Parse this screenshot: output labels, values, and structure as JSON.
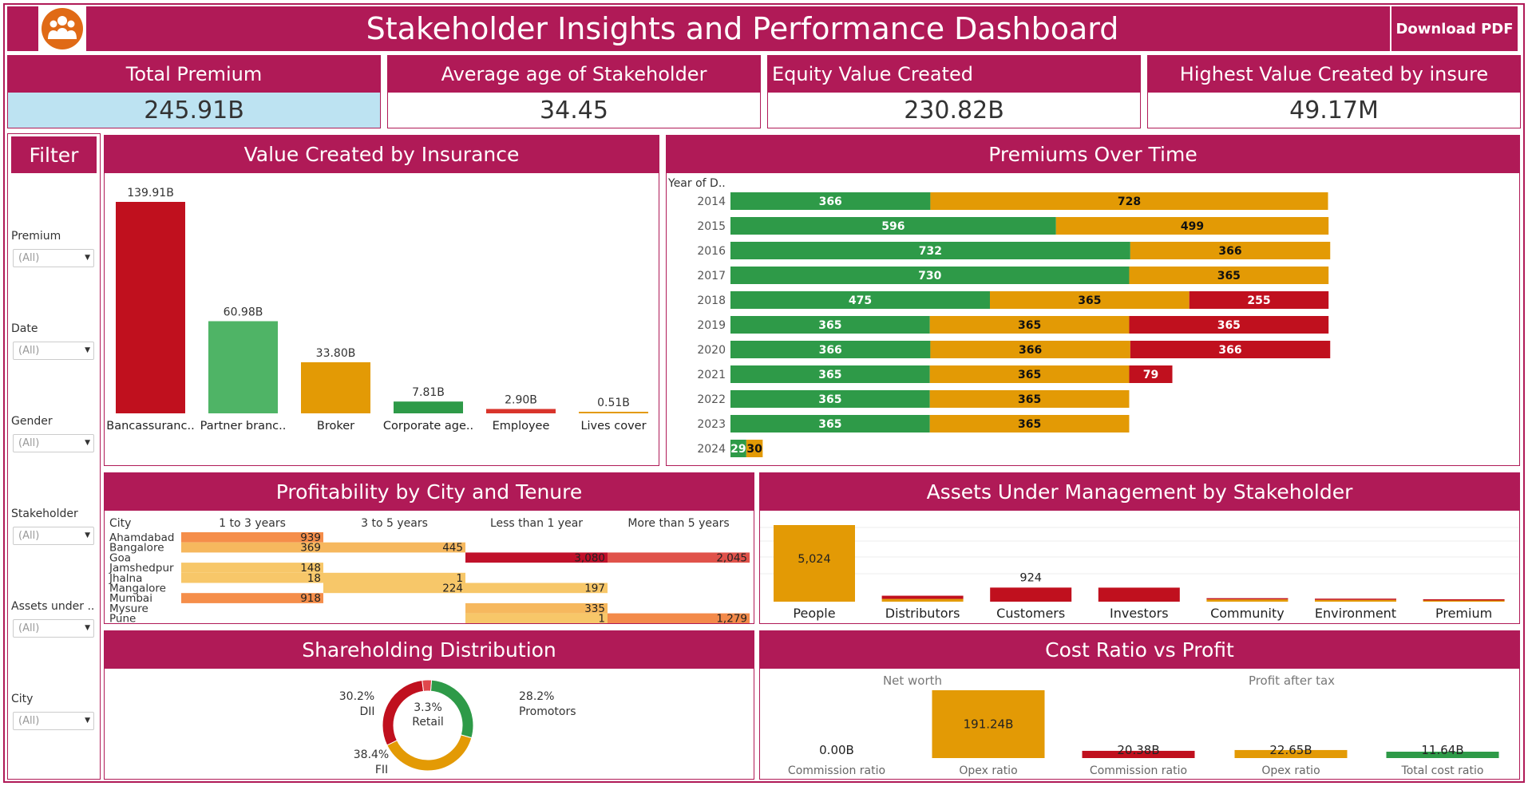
{
  "header": {
    "title": "Stakeholder Insights and Performance Dashboard",
    "download_label": "Download PDF"
  },
  "kpis": [
    {
      "label": "Total Premium",
      "value": "245.91B"
    },
    {
      "label": "Average age of Stakeholder",
      "value": "34.45"
    },
    {
      "label": "Equity Value Created",
      "value": "230.82B"
    },
    {
      "label": "Highest Value Created by insure",
      "value": "49.17M"
    }
  ],
  "filter": {
    "title": "Filter",
    "items": [
      {
        "label": "Premium",
        "value": "(All)"
      },
      {
        "label": "Date",
        "value": "(All)"
      },
      {
        "label": "Gender",
        "value": "(All)"
      },
      {
        "label": "Stakeholder",
        "value": "(All)"
      },
      {
        "label": "Assets under ..",
        "value": "(All)"
      },
      {
        "label": "City",
        "value": "(All)"
      }
    ]
  },
  "colors": {
    "maroon": "#b01a57",
    "red": "#c0101e",
    "green": "#2e9a48",
    "lightgreen": "#4fb466",
    "orange": "#e39a05",
    "kpi_highlight": "#bde3f2"
  },
  "panels": {
    "value_created": "Value Created by Insurance",
    "premiums": "Premiums Over Time",
    "profitability": "Profitability by City and Tenure",
    "aum": "Assets Under Management by Stakeholder",
    "shareholding": "Shareholding Distribution",
    "cost_ratio": "Cost Ratio vs Profit"
  },
  "chart_data": [
    {
      "id": "value_created",
      "type": "bar",
      "categories": [
        "Bancassuranc..",
        "Partner branc..",
        "Broker",
        "Corporate age..",
        "Employee",
        "Lives cover"
      ],
      "values": [
        139.91,
        60.98,
        33.8,
        7.81,
        2.9,
        0.51
      ],
      "labels": [
        "139.91B",
        "60.98B",
        "33.80B",
        "7.81B",
        "2.90B",
        "0.51B"
      ],
      "colors": [
        "#c0101e",
        "#4fb466",
        "#e39a05",
        "#2e9a48",
        "#d9342b",
        "#e39a05"
      ]
    },
    {
      "id": "premiums",
      "type": "bar",
      "orientation": "horizontal-stacked",
      "axis_label": "Year of D..",
      "categories": [
        "2014",
        "2015",
        "2016",
        "2017",
        "2018",
        "2019",
        "2020",
        "2021",
        "2022",
        "2023",
        "2024"
      ],
      "series": [
        {
          "color": "#2e9a48",
          "values": [
            366,
            596,
            732,
            730,
            475,
            365,
            366,
            365,
            365,
            365,
            29
          ]
        },
        {
          "color": "#e39a05",
          "values": [
            728,
            499,
            366,
            365,
            365,
            365,
            366,
            365,
            365,
            365,
            30
          ]
        },
        {
          "color": "#c0101e",
          "values": [
            0,
            0,
            0,
            0,
            255,
            365,
            366,
            79,
            0,
            0,
            0
          ]
        }
      ]
    },
    {
      "id": "profitability",
      "type": "table",
      "row_header": "City",
      "columns": [
        "1 to 3 years",
        "3 to 5 years",
        "Less than 1 year",
        "More than 5 years"
      ],
      "rows": [
        {
          "city": "Ahamdabad",
          "cells": [
            939,
            null,
            null,
            null
          ]
        },
        {
          "city": "Bangalore",
          "cells": [
            369,
            445,
            null,
            null
          ]
        },
        {
          "city": "Goa",
          "cells": [
            null,
            null,
            3080,
            2045
          ]
        },
        {
          "city": "Jamshedpur",
          "cells": [
            148,
            null,
            null,
            null
          ]
        },
        {
          "city": "Jhalna",
          "cells": [
            18,
            1,
            null,
            null
          ]
        },
        {
          "city": "Mangalore",
          "cells": [
            null,
            224,
            197,
            null
          ]
        },
        {
          "city": "Mumbai",
          "cells": [
            918,
            null,
            null,
            null
          ]
        },
        {
          "city": "Mysure",
          "cells": [
            null,
            null,
            335,
            null
          ]
        },
        {
          "city": "Pune",
          "cells": [
            null,
            null,
            1,
            1279
          ]
        }
      ],
      "cell_labels": {
        "Ahamdabad": [
          "939",
          "",
          "",
          ""
        ],
        "Bangalore": [
          "369",
          "445",
          "",
          ""
        ],
        "Goa": [
          "",
          "",
          "3,080",
          "2,045"
        ],
        "Jamshedpur": [
          "148",
          "",
          "",
          ""
        ],
        "Jhalna": [
          "18",
          "1",
          "",
          ""
        ],
        "Mangalore": [
          "",
          "224",
          "197",
          ""
        ],
        "Mumbai": [
          "918",
          "",
          "",
          ""
        ],
        "Mysure": [
          "",
          "",
          "335",
          ""
        ],
        "Pune": [
          "",
          "",
          "1",
          "1,279"
        ]
      }
    },
    {
      "id": "aum",
      "type": "bar",
      "orientation": "stacked",
      "categories": [
        "People",
        "Distributors",
        "Customers",
        "Investors",
        "Community",
        "Environment",
        "Premium"
      ],
      "series": [
        {
          "color": "#e39a05",
          "values": [
            5024,
            180,
            0,
            0,
            150,
            120,
            15
          ]
        },
        {
          "color": "#c0101e",
          "values": [
            0,
            210,
            924,
            920,
            20,
            15,
            10
          ]
        }
      ],
      "labels": [
        "5,024",
        "",
        "924",
        "",
        "",
        "",
        ""
      ],
      "max": 5600
    },
    {
      "id": "shareholding",
      "type": "pie",
      "slices": [
        {
          "name": "Promotors",
          "value": 28.2,
          "label": "28.2%",
          "color": "#2e9a48"
        },
        {
          "name": "FII",
          "value": 38.4,
          "label": "38.4%",
          "color": "#e39a05"
        },
        {
          "name": "DII",
          "value": 30.2,
          "label": "30.2%",
          "color": "#c0101e"
        },
        {
          "name": "Retail",
          "value": 3.3,
          "label": "3.3%",
          "color": "#e0474c"
        }
      ]
    },
    {
      "id": "cost_ratio",
      "type": "bar",
      "groups": [
        {
          "name": "Net worth",
          "bars": [
            {
              "category": "Commission ratio",
              "value": 0.0,
              "label": "0.00B",
              "color": "#e39a05"
            },
            {
              "category": "Opex ratio",
              "value": 191.24,
              "label": "191.24B",
              "color": "#e39a05"
            }
          ]
        },
        {
          "name": "Profit after tax",
          "bars": [
            {
              "category": "Commission ratio",
              "value": 20.38,
              "label": "20.38B",
              "color": "#c0101e"
            },
            {
              "category": "Opex ratio",
              "value": 22.65,
              "label": "22.65B",
              "color": "#e39a05"
            },
            {
              "category": "Total cost ratio",
              "value": 11.64,
              "label": "11.64B",
              "color": "#2e9a48"
            }
          ]
        }
      ]
    }
  ]
}
